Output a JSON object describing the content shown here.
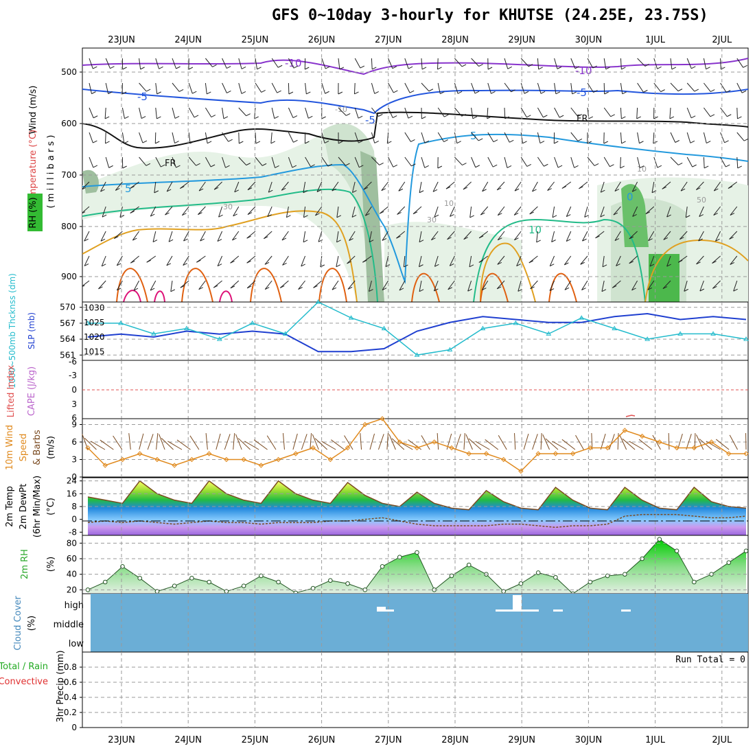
{
  "title": "GFS 0~10day 3-hourly for KHUTSE (24.25E, 23.75S)",
  "dates": [
    "23JUN",
    "24JUN",
    "25JUN",
    "26JUN",
    "27JUN",
    "28JUN",
    "29JUN",
    "30JUN",
    "1JUL",
    "2JUL"
  ],
  "panels": {
    "upper": {
      "label_wind": "Wind (m/s)",
      "label_temp": "Temperature (°C)",
      "label_rh": "RH (%)",
      "label_pressure": "( m i l l i b a r s )",
      "yticks": [
        "500",
        "600",
        "700",
        "800",
        "900"
      ],
      "contour_labels": [
        "-10",
        "-10",
        "-5",
        "-5",
        "-5",
        "5",
        "5",
        "-10",
        "FR",
        "FR",
        "10",
        "30",
        "10",
        "30",
        "10",
        "50",
        "0"
      ]
    },
    "thickness": {
      "label_thickness": "1000~500mb Thcknss (dm)",
      "label_slp": "SLP (mb)",
      "yticks_left": [
        "570",
        "567",
        "564",
        "561"
      ],
      "yticks_right": [
        "1030",
        "1025",
        "1020",
        "1015"
      ]
    },
    "stability": {
      "label_li": "Lifted Index",
      "label_cape": "CAPE (J/kg)",
      "yticks": [
        "-6",
        "-3",
        "0",
        "3",
        "6"
      ]
    },
    "wind10m": {
      "label_a": "10m Wind",
      "label_b": "Speed",
      "label_c": "& Barbs",
      "label_units": "(m/s)",
      "yticks": [
        "9",
        "6",
        "3",
        "0"
      ]
    },
    "temp2m": {
      "label_a": "2m Temp",
      "label_b": "2m DewPt",
      "label_c": "(6hr Min/Max)",
      "label_units": "(°C)",
      "yticks": [
        "24",
        "16",
        "8",
        "0",
        "-8"
      ]
    },
    "rh2m": {
      "label_a": "2m RH",
      "label_units": "(%)",
      "yticks": [
        "80",
        "60",
        "40",
        "20"
      ]
    },
    "cloud": {
      "label_a": "Cloud Cover",
      "label_units": "(%)",
      "levels": [
        "high",
        "middle",
        "low"
      ]
    },
    "precip": {
      "label_a": "Total / Rain",
      "label_b": "Convective",
      "label_c": "3hr Precip (mm)",
      "run_total": "Run Total = 0",
      "yticks": [
        "0.8",
        "0.6",
        "0.4",
        "0.2",
        "0"
      ]
    }
  },
  "colors": {
    "sea_level_pressure": "#1f3fd0",
    "thickness": "#22bbcc",
    "wind_speed": "#e08a1e",
    "temp": "#7a4a20",
    "dewpoint": "#7a4a20",
    "rh": "#2aa82a",
    "cloud": "#6baed6",
    "grid": "#9a9a9a"
  },
  "chart_data": [
    {
      "type": "line",
      "name": "thickness_slp",
      "x": [
        "22JUN18",
        "23JUN00",
        "23JUN12",
        "24JUN00",
        "24JUN12",
        "25JUN00",
        "25JUN12",
        "26JUN00",
        "26JUN12",
        "27JUN00",
        "27JUN12",
        "28JUN00",
        "28JUN12",
        "29JUN00",
        "29JUN12",
        "30JUN00",
        "30JUN12",
        "1JUL00",
        "1JUL12",
        "2JUL00",
        "2JUL06"
      ],
      "series": [
        {
          "name": "SLP (mb)",
          "values": [
            1020,
            1021,
            1020,
            1022,
            1021,
            1022,
            1021,
            1015,
            1015,
            1016,
            1022,
            1025,
            1027,
            1026,
            1025,
            1025,
            1027,
            1028,
            1026,
            1027,
            1026
          ]
        },
        {
          "name": "1000~500mb Thcknss (dm)",
          "values": [
            567,
            567,
            565,
            566,
            564,
            567,
            565,
            571,
            568,
            566,
            561,
            562,
            566,
            567,
            565,
            568,
            566,
            564,
            565,
            565,
            564
          ]
        }
      ],
      "ylim_left": [
        560,
        571
      ],
      "ylim_right": [
        1012,
        1032
      ]
    },
    {
      "type": "line",
      "name": "wind_10m",
      "x": [
        "22JUN18",
        "23JUN00",
        "23JUN06",
        "23JUN12",
        "23JUN18",
        "24JUN00",
        "24JUN06",
        "24JUN12",
        "24JUN18",
        "25JUN00",
        "25JUN06",
        "25JUN12",
        "25JUN18",
        "26JUN00",
        "26JUN06",
        "26JUN12",
        "26JUN18",
        "27JUN00",
        "27JUN06",
        "27JUN12",
        "27JUN18",
        "28JUN00",
        "28JUN06",
        "28JUN12",
        "28JUN18",
        "29JUN00",
        "29JUN06",
        "29JUN12",
        "29JUN18",
        "30JUN00",
        "30JUN06",
        "30JUN12",
        "30JUN18",
        "1JUL00",
        "1JUL06",
        "1JUL12",
        "1JUL18",
        "2JUL00",
        "2JUL06"
      ],
      "series": [
        {
          "name": "Speed",
          "values": [
            5,
            2,
            3,
            4,
            3,
            2,
            3,
            4,
            3,
            3,
            2,
            3,
            4,
            5,
            3,
            5,
            9,
            10,
            6,
            5,
            6,
            5,
            4,
            4,
            3,
            1,
            4,
            4,
            4,
            5,
            5,
            8,
            7,
            6,
            5,
            5,
            6,
            4,
            4
          ]
        }
      ],
      "ylim": [
        0,
        10
      ]
    },
    {
      "type": "area",
      "name": "temp_2m",
      "x": [
        "22JUN18",
        "23JUN00",
        "23JUN06",
        "23JUN12",
        "23JUN18",
        "24JUN00",
        "24JUN06",
        "24JUN12",
        "24JUN18",
        "25JUN00",
        "25JUN06",
        "25JUN12",
        "25JUN18",
        "26JUN00",
        "26JUN06",
        "26JUN12",
        "26JUN18",
        "27JUN00",
        "27JUN06",
        "27JUN12",
        "27JUN18",
        "28JUN00",
        "28JUN06",
        "28JUN12",
        "28JUN18",
        "29JUN00",
        "29JUN06",
        "29JUN12",
        "29JUN18",
        "30JUN00",
        "30JUN06",
        "30JUN12",
        "30JUN18",
        "1JUL00",
        "1JUL06",
        "1JUL12",
        "1JUL18",
        "2JUL00",
        "2JUL06"
      ],
      "series": [
        {
          "name": "2m Temp",
          "values": [
            14,
            12,
            10,
            24,
            16,
            12,
            10,
            24,
            16,
            12,
            10,
            24,
            16,
            12,
            10,
            23,
            15,
            10,
            8,
            17,
            10,
            7,
            6,
            18,
            11,
            7,
            6,
            20,
            12,
            7,
            6,
            20,
            12,
            7,
            6,
            20,
            11,
            8,
            7
          ]
        },
        {
          "name": "2m DewPt",
          "values": [
            -2,
            -1,
            -2,
            -1,
            -2,
            -3,
            -2,
            -1,
            -2,
            -2,
            -3,
            -2,
            -2,
            -2,
            -1,
            -1,
            0,
            1,
            -1,
            -3,
            -4,
            -4,
            -4,
            -4,
            -3,
            -3,
            -4,
            -5,
            -4,
            -4,
            -3,
            2,
            3,
            3,
            3,
            2,
            1,
            1,
            2
          ]
        }
      ],
      "ylim": [
        -10,
        26
      ]
    },
    {
      "type": "area",
      "name": "rh_2m",
      "x": [
        "22JUN18",
        "23JUN00",
        "23JUN06",
        "23JUN12",
        "23JUN18",
        "24JUN00",
        "24JUN06",
        "24JUN12",
        "24JUN18",
        "25JUN00",
        "25JUN06",
        "25JUN12",
        "25JUN18",
        "26JUN00",
        "26JUN06",
        "26JUN12",
        "26JUN18",
        "27JUN00",
        "27JUN06",
        "27JUN12",
        "27JUN18",
        "28JUN00",
        "28JUN06",
        "28JUN12",
        "28JUN18",
        "29JUN00",
        "29JUN06",
        "29JUN12",
        "29JUN18",
        "30JUN00",
        "30JUN06",
        "30JUN12",
        "30JUN18",
        "1JUL00",
        "1JUL06",
        "1JUL12",
        "1JUL18",
        "2JUL00",
        "2JUL06"
      ],
      "series": [
        {
          "name": "2m RH",
          "values": [
            20,
            30,
            50,
            35,
            18,
            25,
            35,
            30,
            18,
            25,
            38,
            30,
            16,
            22,
            32,
            28,
            20,
            50,
            62,
            68,
            20,
            38,
            52,
            40,
            18,
            28,
            42,
            36,
            15,
            30,
            38,
            40,
            60,
            85,
            70,
            30,
            40,
            55,
            70
          ]
        }
      ],
      "ylim": [
        15,
        90
      ]
    },
    {
      "type": "bar",
      "name": "precip_3hr",
      "categories": [
        "23JUN",
        "24JUN",
        "25JUN",
        "26JUN",
        "27JUN",
        "28JUN",
        "29JUN",
        "30JUN",
        "1JUL",
        "2JUL"
      ],
      "values": [
        0,
        0,
        0,
        0,
        0,
        0,
        0,
        0,
        0,
        0
      ],
      "ylim": [
        0,
        1
      ]
    }
  ]
}
